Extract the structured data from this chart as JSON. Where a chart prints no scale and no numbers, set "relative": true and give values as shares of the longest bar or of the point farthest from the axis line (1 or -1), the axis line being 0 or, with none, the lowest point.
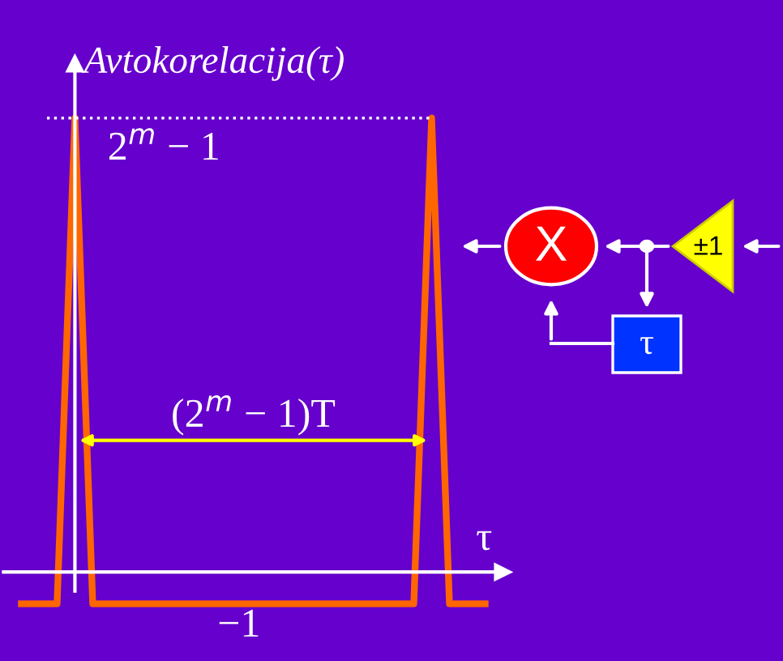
{
  "chart_data": {
    "type": "line",
    "relative": true,
    "ylabel": "Avtokorelacija(τ)",
    "xlabel": "τ",
    "categories": [
      null,
      null,
      null,
      null,
      null,
      null,
      null,
      null,
      null,
      null,
      null,
      null,
      null,
      null,
      null,
      null,
      null,
      null,
      null,
      null,
      null,
      null,
      null,
      null,
      null,
      null,
      null
    ],
    "series": [
      {
        "color": "#ff6600",
        "values": [
          -0.07,
          -0.07,
          -0.07,
          1,
          -0.07,
          -0.07,
          -0.07,
          -0.07,
          -0.07,
          -0.07,
          -0.07,
          -0.07,
          -0.07,
          -0.07,
          -0.07,
          -0.07,
          -0.07,
          -0.07,
          -0.07,
          -0.07,
          -0.07,
          -0.07,
          -0.07,
          1,
          -0.07,
          -0.07,
          -0.07
        ]
      }
    ],
    "line_style": "solid",
    "legend": false,
    "ref_lines": [
      {
        "axis": "y",
        "value": 1,
        "color": "#ffffff",
        "line_style": "dotted"
      }
    ],
    "annotations": [
      {
        "text": "2$^{m}$ − 1",
        "y": 1
      },
      "(2$^{m}$ − 1)T",
      {
        "text": "−1",
        "y": -0.07
      },
      "X",
      "±1",
      "τ"
    ]
  }
}
